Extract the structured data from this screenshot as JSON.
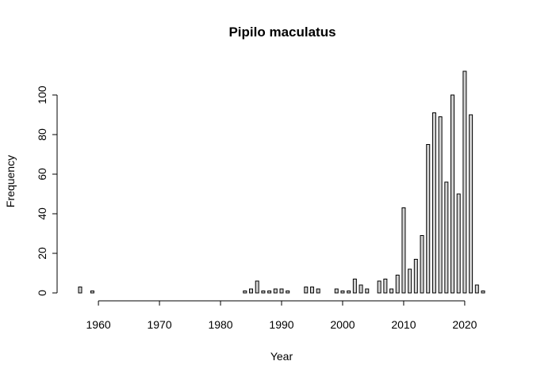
{
  "chart_data": {
    "type": "bar",
    "title": "Pipilo maculatus",
    "xlabel": "Year",
    "ylabel": "Frequency",
    "xlim": [
      1957,
      2023
    ],
    "ylim": [
      0,
      112
    ],
    "xticks": [
      1960,
      1970,
      1980,
      1990,
      2000,
      2010,
      2020
    ],
    "yticks": [
      0,
      20,
      40,
      60,
      80,
      100
    ],
    "bar_fill": "#d3d3d3",
    "bar_stroke": "#000000",
    "grid": false,
    "x": [
      1957,
      1958,
      1959,
      1960,
      1961,
      1962,
      1963,
      1964,
      1965,
      1966,
      1967,
      1968,
      1969,
      1970,
      1971,
      1972,
      1973,
      1974,
      1975,
      1976,
      1977,
      1978,
      1979,
      1980,
      1981,
      1982,
      1983,
      1984,
      1985,
      1986,
      1987,
      1988,
      1989,
      1990,
      1991,
      1992,
      1993,
      1994,
      1995,
      1996,
      1997,
      1998,
      1999,
      2000,
      2001,
      2002,
      2003,
      2004,
      2005,
      2006,
      2007,
      2008,
      2009,
      2010,
      2011,
      2012,
      2013,
      2014,
      2015,
      2016,
      2017,
      2018,
      2019,
      2020,
      2021,
      2022,
      2023
    ],
    "values": [
      3,
      0,
      1,
      0,
      0,
      0,
      0,
      0,
      0,
      0,
      0,
      0,
      0,
      0,
      0,
      0,
      0,
      0,
      0,
      0,
      0,
      0,
      0,
      0,
      0,
      0,
      0,
      1,
      2,
      6,
      1,
      1,
      2,
      2,
      1,
      0,
      0,
      3,
      3,
      2,
      0,
      0,
      2,
      1,
      1,
      7,
      4,
      2,
      0,
      6,
      7,
      2,
      9,
      43,
      12,
      17,
      29,
      75,
      91,
      89,
      56,
      100,
      50,
      112,
      90,
      4,
      1
    ]
  }
}
